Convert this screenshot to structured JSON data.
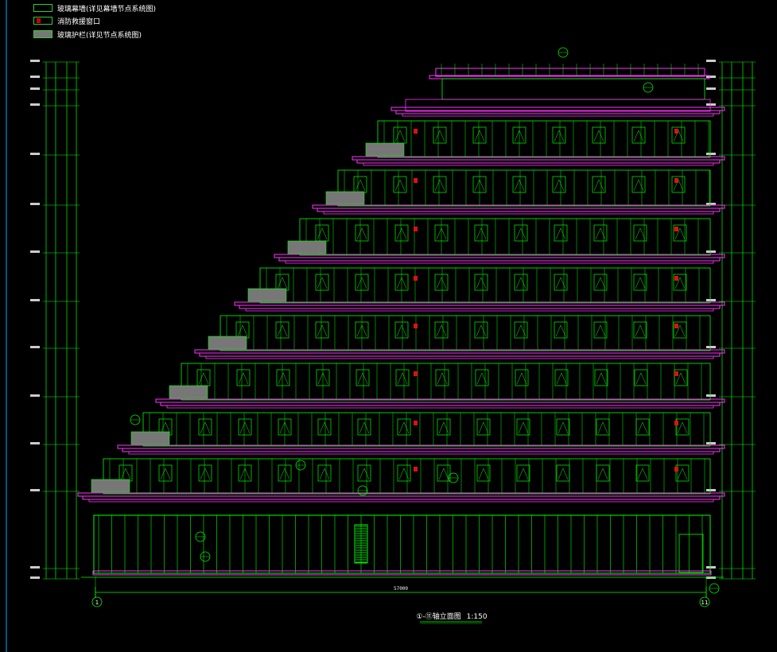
{
  "legend": [
    {
      "label": "玻璃幕墙(详见幕墙节点系统图)",
      "swatch": "#000000",
      "icon": "glass-curtain-wall-swatch"
    },
    {
      "label": "消防救援窗口",
      "swatch": "#cc0000",
      "icon": "fire-rescue-window-swatch"
    },
    {
      "label": "玻璃护栏(详见节点系统图)",
      "swatch": "#777777",
      "icon": "glass-railing-swatch"
    }
  ],
  "drawing_title": "①-⑪轴立面图",
  "scale": "1:150",
  "axis_start": "1",
  "axis_end": "11",
  "total_dimension": "57000",
  "colors": {
    "background": "#000000",
    "structure": "#00ff00",
    "slab": "#ff33ff",
    "fire_window": "#dd1111",
    "railing": "#777777",
    "frame": "#00aaff"
  }
}
